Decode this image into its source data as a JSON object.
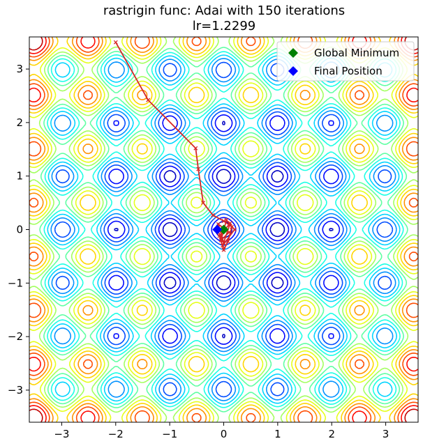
{
  "chart_data": {
    "type": "contour",
    "title": "rastrigin func: Adai with 150 iterations",
    "subtitle": "lr=1.2299",
    "xlabel": "",
    "ylabel": "",
    "xlim": [
      -3.6,
      3.6
    ],
    "ylim": [
      -3.6,
      3.6
    ],
    "x_ticks": [
      -3,
      -2,
      -1,
      0,
      1,
      2,
      3
    ],
    "y_ticks": [
      -3,
      -2,
      -1,
      0,
      1,
      2,
      3
    ],
    "x_tick_labels": [
      "−3",
      "−2",
      "−1",
      "0",
      "1",
      "2",
      "3"
    ],
    "y_tick_labels": [
      "−3",
      "−2",
      "−1",
      "0",
      "1",
      "2",
      "3"
    ],
    "grid": false,
    "colormap": "jet",
    "legend": {
      "placement": "top-right",
      "entries": [
        {
          "label": "Global Minimum",
          "color": "#008000",
          "marker": "diamond"
        },
        {
          "label": "Final Position",
          "color": "#0000ff",
          "marker": "diamond"
        }
      ]
    },
    "global_minimum": {
      "x": 0,
      "y": 0
    },
    "final_position": {
      "x": -0.12,
      "y": 0.0
    },
    "trajectory_color": "#d62728",
    "trajectory": [
      {
        "x": -2.0,
        "y": 3.5
      },
      {
        "x": -1.4,
        "y": 2.42
      },
      {
        "x": -0.52,
        "y": 1.52
      },
      {
        "x": -0.47,
        "y": 1.13
      },
      {
        "x": -0.38,
        "y": 0.5
      },
      {
        "x": -0.2,
        "y": 0.27
      },
      {
        "x": 0.0,
        "y": 0.16
      },
      {
        "x": 0.15,
        "y": 0.05
      },
      {
        "x": 0.08,
        "y": -0.22
      },
      {
        "x": 0.0,
        "y": -0.38
      },
      {
        "x": -0.08,
        "y": -0.12
      },
      {
        "x": 0.12,
        "y": 0.12
      },
      {
        "x": -0.02,
        "y": -0.3
      },
      {
        "x": 0.2,
        "y": 0.0
      },
      {
        "x": 0.05,
        "y": 0.18
      },
      {
        "x": -0.05,
        "y": -0.2
      },
      {
        "x": 0.1,
        "y": -0.05
      },
      {
        "x": -0.1,
        "y": 0.1
      },
      {
        "x": 0.0,
        "y": -0.25
      },
      {
        "x": -0.12,
        "y": 0.0
      }
    ]
  }
}
